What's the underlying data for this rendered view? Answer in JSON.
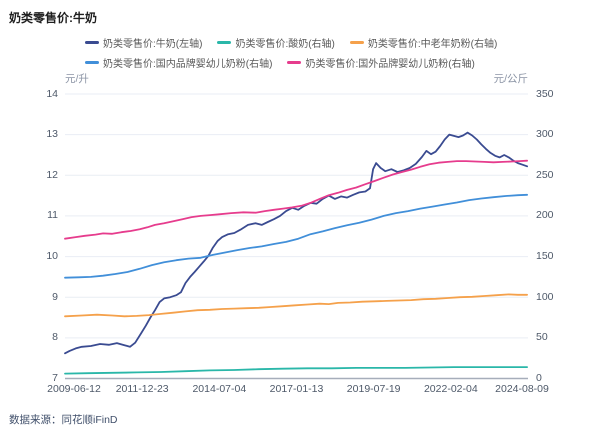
{
  "title": "奶类零售价:牛奶",
  "source": "数据来源：同花顺iFinD",
  "chart_data": {
    "type": "line",
    "grid": true,
    "legend_position": "top",
    "left_axis": {
      "unit": "元/升",
      "min": 7,
      "max": 14,
      "ticks": [
        14,
        13,
        12,
        11,
        10,
        9,
        8,
        7
      ]
    },
    "right_axis": {
      "unit": "元/公斤",
      "min": 0,
      "max": 350,
      "ticks": [
        350,
        300,
        250,
        200,
        150,
        100,
        50,
        0
      ]
    },
    "x_axis": {
      "tick_labels": [
        "2009-06-12",
        "2011-12-23",
        "2014-07-04",
        "2017-01-13",
        "2019-07-19",
        "2022-02-04",
        "2024-08-09"
      ],
      "year_min": 2009.45,
      "year_max": 2024.63
    },
    "series": [
      {
        "name": "奶类零售价:牛奶(左轴)",
        "axis": "left",
        "color": "#3a4b91",
        "points": [
          [
            2009.45,
            7.62
          ],
          [
            2009.6,
            7.68
          ],
          [
            2009.8,
            7.74
          ],
          [
            2010.0,
            7.78
          ],
          [
            2010.3,
            7.8
          ],
          [
            2010.6,
            7.85
          ],
          [
            2010.9,
            7.83
          ],
          [
            2011.15,
            7.87
          ],
          [
            2011.4,
            7.82
          ],
          [
            2011.58,
            7.78
          ],
          [
            2011.75,
            7.88
          ],
          [
            2011.95,
            8.12
          ],
          [
            2012.1,
            8.3
          ],
          [
            2012.25,
            8.5
          ],
          [
            2012.4,
            8.68
          ],
          [
            2012.55,
            8.88
          ],
          [
            2012.7,
            8.97
          ],
          [
            2012.9,
            9.0
          ],
          [
            2013.1,
            9.05
          ],
          [
            2013.25,
            9.12
          ],
          [
            2013.4,
            9.35
          ],
          [
            2013.55,
            9.5
          ],
          [
            2013.7,
            9.62
          ],
          [
            2013.85,
            9.75
          ],
          [
            2014.0,
            9.88
          ],
          [
            2014.15,
            10.02
          ],
          [
            2014.3,
            10.22
          ],
          [
            2014.45,
            10.38
          ],
          [
            2014.6,
            10.48
          ],
          [
            2014.8,
            10.55
          ],
          [
            2015.0,
            10.58
          ],
          [
            2015.2,
            10.66
          ],
          [
            2015.45,
            10.78
          ],
          [
            2015.7,
            10.82
          ],
          [
            2015.9,
            10.78
          ],
          [
            2016.1,
            10.85
          ],
          [
            2016.3,
            10.92
          ],
          [
            2016.5,
            11.0
          ],
          [
            2016.7,
            11.12
          ],
          [
            2016.9,
            11.2
          ],
          [
            2017.1,
            11.15
          ],
          [
            2017.3,
            11.25
          ],
          [
            2017.5,
            11.32
          ],
          [
            2017.7,
            11.3
          ],
          [
            2017.9,
            11.42
          ],
          [
            2018.1,
            11.5
          ],
          [
            2018.3,
            11.42
          ],
          [
            2018.5,
            11.48
          ],
          [
            2018.7,
            11.45
          ],
          [
            2018.9,
            11.52
          ],
          [
            2019.1,
            11.58
          ],
          [
            2019.3,
            11.6
          ],
          [
            2019.45,
            11.68
          ],
          [
            2019.55,
            12.15
          ],
          [
            2019.65,
            12.3
          ],
          [
            2019.8,
            12.18
          ],
          [
            2019.95,
            12.1
          ],
          [
            2020.15,
            12.15
          ],
          [
            2020.35,
            12.08
          ],
          [
            2020.55,
            12.12
          ],
          [
            2020.75,
            12.18
          ],
          [
            2020.95,
            12.28
          ],
          [
            2021.15,
            12.45
          ],
          [
            2021.3,
            12.6
          ],
          [
            2021.45,
            12.52
          ],
          [
            2021.6,
            12.58
          ],
          [
            2021.75,
            12.72
          ],
          [
            2021.9,
            12.88
          ],
          [
            2022.05,
            13.0
          ],
          [
            2022.2,
            12.97
          ],
          [
            2022.35,
            12.94
          ],
          [
            2022.5,
            12.98
          ],
          [
            2022.65,
            13.05
          ],
          [
            2022.8,
            12.98
          ],
          [
            2022.95,
            12.88
          ],
          [
            2023.1,
            12.76
          ],
          [
            2023.25,
            12.65
          ],
          [
            2023.4,
            12.55
          ],
          [
            2023.55,
            12.48
          ],
          [
            2023.7,
            12.44
          ],
          [
            2023.85,
            12.5
          ],
          [
            2024.0,
            12.44
          ],
          [
            2024.15,
            12.36
          ],
          [
            2024.3,
            12.3
          ],
          [
            2024.45,
            12.26
          ],
          [
            2024.6,
            12.22
          ]
        ]
      },
      {
        "name": "奶类零售价:酸奶(右轴)",
        "axis": "right",
        "color": "#2ab7a9",
        "points": [
          [
            2009.45,
            6
          ],
          [
            2010.2,
            6.5
          ],
          [
            2011.0,
            7
          ],
          [
            2011.8,
            7.5
          ],
          [
            2012.6,
            8
          ],
          [
            2013.4,
            9
          ],
          [
            2014.2,
            10
          ],
          [
            2015.0,
            10.5
          ],
          [
            2015.8,
            11.5
          ],
          [
            2016.6,
            12
          ],
          [
            2017.4,
            12.5
          ],
          [
            2018.2,
            12.5
          ],
          [
            2019.0,
            13
          ],
          [
            2019.8,
            13
          ],
          [
            2020.6,
            13
          ],
          [
            2021.4,
            13.5
          ],
          [
            2022.2,
            14
          ],
          [
            2023.0,
            14
          ],
          [
            2023.8,
            14
          ],
          [
            2024.6,
            14
          ]
        ]
      },
      {
        "name": "奶类零售价:中老年奶粉(右轴)",
        "axis": "right",
        "color": "#f5a14b",
        "points": [
          [
            2009.45,
            76.5
          ],
          [
            2010.0,
            77.5
          ],
          [
            2010.5,
            78.5
          ],
          [
            2011.0,
            77.5
          ],
          [
            2011.4,
            76.5
          ],
          [
            2011.8,
            77
          ],
          [
            2012.2,
            78
          ],
          [
            2012.6,
            79.5
          ],
          [
            2013.0,
            81
          ],
          [
            2013.4,
            82.5
          ],
          [
            2013.8,
            84
          ],
          [
            2014.2,
            84.5
          ],
          [
            2014.6,
            85.5
          ],
          [
            2015.0,
            86
          ],
          [
            2015.4,
            86.5
          ],
          [
            2015.8,
            87
          ],
          [
            2016.2,
            88
          ],
          [
            2016.6,
            89
          ],
          [
            2017.0,
            90
          ],
          [
            2017.4,
            91
          ],
          [
            2017.8,
            92
          ],
          [
            2018.1,
            91.5
          ],
          [
            2018.4,
            93
          ],
          [
            2018.8,
            93.5
          ],
          [
            2019.2,
            94.5
          ],
          [
            2019.6,
            95
          ],
          [
            2020.0,
            95.5
          ],
          [
            2020.4,
            96
          ],
          [
            2020.8,
            96.5
          ],
          [
            2021.2,
            97.5
          ],
          [
            2021.6,
            98
          ],
          [
            2022.0,
            99
          ],
          [
            2022.4,
            100
          ],
          [
            2022.8,
            100.5
          ],
          [
            2023.2,
            101.5
          ],
          [
            2023.6,
            102.5
          ],
          [
            2024.0,
            103.5
          ],
          [
            2024.3,
            103
          ],
          [
            2024.6,
            103
          ]
        ]
      },
      {
        "name": "奶类零售价:国内品牌婴幼儿奶粉(右轴)",
        "axis": "right",
        "color": "#418fd9",
        "points": [
          [
            2009.45,
            124
          ],
          [
            2009.9,
            124.5
          ],
          [
            2010.3,
            125
          ],
          [
            2010.7,
            126.5
          ],
          [
            2011.1,
            128.5
          ],
          [
            2011.5,
            131
          ],
          [
            2011.9,
            135
          ],
          [
            2012.3,
            139.5
          ],
          [
            2012.7,
            143
          ],
          [
            2013.1,
            145.5
          ],
          [
            2013.5,
            147.5
          ],
          [
            2013.9,
            148.5
          ],
          [
            2014.3,
            152
          ],
          [
            2014.7,
            155
          ],
          [
            2015.1,
            158
          ],
          [
            2015.5,
            160.5
          ],
          [
            2015.9,
            162.5
          ],
          [
            2016.3,
            165.5
          ],
          [
            2016.7,
            168
          ],
          [
            2017.1,
            172
          ],
          [
            2017.5,
            177.5
          ],
          [
            2017.9,
            181
          ],
          [
            2018.3,
            185
          ],
          [
            2018.7,
            188.5
          ],
          [
            2019.1,
            191.5
          ],
          [
            2019.5,
            195.5
          ],
          [
            2019.9,
            200
          ],
          [
            2020.3,
            203.5
          ],
          [
            2020.7,
            206
          ],
          [
            2021.1,
            209
          ],
          [
            2021.5,
            211.5
          ],
          [
            2021.9,
            214
          ],
          [
            2022.3,
            216.5
          ],
          [
            2022.7,
            219.5
          ],
          [
            2023.1,
            221.5
          ],
          [
            2023.5,
            223
          ],
          [
            2023.9,
            224.5
          ],
          [
            2024.3,
            225.5
          ],
          [
            2024.6,
            226
          ]
        ]
      },
      {
        "name": "奶类零售价:国外品牌婴幼儿奶粉(右轴)",
        "axis": "right",
        "color": "#e63c8d",
        "points": [
          [
            2009.45,
            172
          ],
          [
            2009.8,
            174
          ],
          [
            2010.1,
            175.5
          ],
          [
            2010.45,
            177
          ],
          [
            2010.7,
            178.5
          ],
          [
            2011.0,
            178
          ],
          [
            2011.3,
            180
          ],
          [
            2011.6,
            181.5
          ],
          [
            2011.9,
            183.5
          ],
          [
            2012.15,
            186
          ],
          [
            2012.4,
            189
          ],
          [
            2012.7,
            191
          ],
          [
            2013.0,
            193.5
          ],
          [
            2013.3,
            196
          ],
          [
            2013.6,
            198.5
          ],
          [
            2013.9,
            200
          ],
          [
            2014.2,
            201
          ],
          [
            2014.5,
            202
          ],
          [
            2014.9,
            203.5
          ],
          [
            2015.3,
            204.5
          ],
          [
            2015.7,
            204
          ],
          [
            2016.0,
            206
          ],
          [
            2016.3,
            207.5
          ],
          [
            2016.6,
            209
          ],
          [
            2016.9,
            210.5
          ],
          [
            2017.2,
            212.5
          ],
          [
            2017.5,
            216
          ],
          [
            2017.8,
            221
          ],
          [
            2018.1,
            225.5
          ],
          [
            2018.4,
            228.5
          ],
          [
            2018.7,
            232
          ],
          [
            2019.0,
            235
          ],
          [
            2019.3,
            239
          ],
          [
            2019.6,
            243
          ],
          [
            2019.9,
            247
          ],
          [
            2020.2,
            251
          ],
          [
            2020.5,
            254
          ],
          [
            2020.8,
            257
          ],
          [
            2021.1,
            260.5
          ],
          [
            2021.4,
            263.5
          ],
          [
            2021.7,
            265.5
          ],
          [
            2022.0,
            266.5
          ],
          [
            2022.3,
            267.5
          ],
          [
            2022.6,
            267.5
          ],
          [
            2022.9,
            267
          ],
          [
            2023.2,
            266.5
          ],
          [
            2023.5,
            266
          ],
          [
            2023.8,
            266.5
          ],
          [
            2024.1,
            267
          ],
          [
            2024.35,
            267.5
          ],
          [
            2024.6,
            268
          ]
        ]
      }
    ],
    "colors": {
      "gridline": "#e9edf4",
      "axis_line": "#a6adba",
      "axis_text": "#4e5969"
    }
  }
}
